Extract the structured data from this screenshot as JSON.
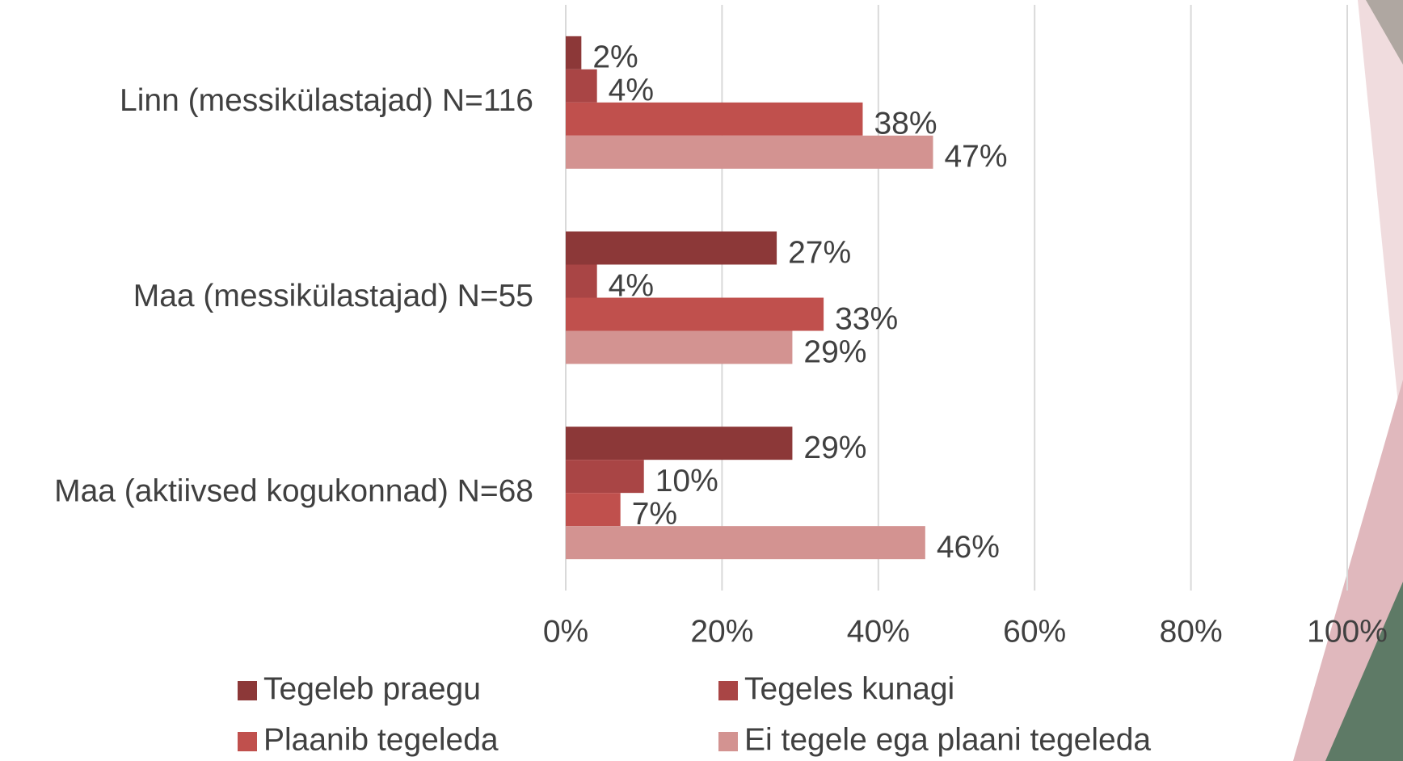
{
  "chart_data": {
    "type": "hbar",
    "categories": [
      "Linn (messikülastajad) N=116",
      "Maa (messikülastajad) N=55",
      "Maa (aktiivsed kogukonnad) N=68"
    ],
    "series": [
      {
        "name": "Tegeleb praegu",
        "color": "#8c3838",
        "values": [
          2,
          27,
          29
        ],
        "value_labels": [
          "2%",
          "27%",
          "29%"
        ]
      },
      {
        "name": "Tegeles kunagi",
        "color": "#a94545",
        "values": [
          4,
          4,
          10
        ],
        "value_labels": [
          "4%",
          "4%",
          "10%"
        ]
      },
      {
        "name": "Plaanib tegeleda",
        "color": "#c0504d",
        "values": [
          38,
          33,
          7
        ],
        "value_labels": [
          "38%",
          "33%",
          "7%"
        ]
      },
      {
        "name": "Ei tegele ega plaani tegeleda",
        "color": "#d39391",
        "values": [
          47,
          29,
          46
        ],
        "value_labels": [
          "47%",
          "29%",
          "46%"
        ]
      }
    ],
    "xlim": [
      0,
      100
    ],
    "xticks": [
      {
        "value": 0,
        "label": "0%"
      },
      {
        "value": 20,
        "label": "20%"
      },
      {
        "value": 40,
        "label": "40%"
      },
      {
        "value": 60,
        "label": "60%"
      },
      {
        "value": 80,
        "label": "80%"
      },
      {
        "value": 100,
        "label": "100%"
      }
    ],
    "grid": true,
    "legend": "bottom"
  }
}
